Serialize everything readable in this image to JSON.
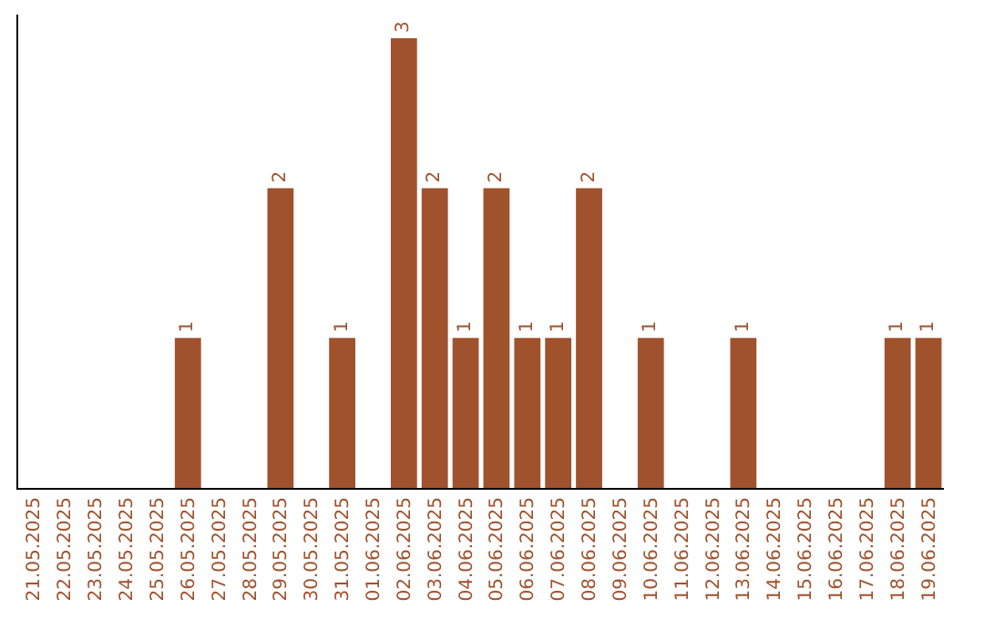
{
  "chart_data": {
    "type": "bar",
    "categories": [
      "21.05.2025",
      "22.05.2025",
      "23.05.2025",
      "24.05.2025",
      "25.05.2025",
      "26.05.2025",
      "27.05.2025",
      "28.05.2025",
      "29.05.2025",
      "30.05.2025",
      "31.05.2025",
      "01.06.2025",
      "02.06.2025",
      "03.06.2025",
      "04.06.2025",
      "05.06.2025",
      "06.06.2025",
      "07.06.2025",
      "08.06.2025",
      "09.06.2025",
      "10.06.2025",
      "11.06.2025",
      "12.06.2025",
      "13.06.2025",
      "14.06.2025",
      "15.06.2025",
      "16.06.2025",
      "17.06.2025",
      "18.06.2025",
      "19.06.2025"
    ],
    "values": [
      0,
      0,
      0,
      0,
      0,
      1,
      0,
      0,
      2,
      0,
      1,
      0,
      3,
      2,
      1,
      2,
      1,
      1,
      2,
      0,
      1,
      0,
      0,
      1,
      0,
      0,
      0,
      0,
      1,
      1
    ],
    "value_labels": [
      null,
      null,
      null,
      null,
      null,
      "1",
      null,
      null,
      "2",
      null,
      "1",
      null,
      "3",
      "2",
      "1",
      "2",
      "1",
      "1",
      "2",
      null,
      "1",
      null,
      null,
      "1",
      null,
      null,
      null,
      null,
      "1",
      "1"
    ],
    "color": "#a0522d",
    "tick_labels": "x"
  }
}
